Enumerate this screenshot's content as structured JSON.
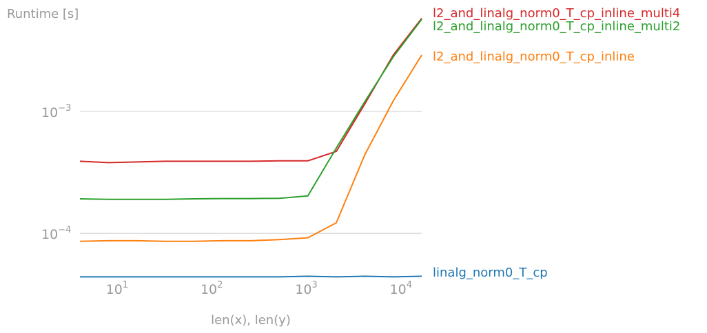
{
  "chart_data": {
    "type": "line",
    "ylabel": "Runtime [s]",
    "xlabel": "len(x), len(y)",
    "xscale": "log",
    "yscale": "log",
    "xlim": [
      4,
      16384
    ],
    "ylim": [
      3.5e-05,
      0.0072
    ],
    "grid": "horizontal major",
    "legend": "labels at right end of lines",
    "x_ticks": [
      {
        "value": 10,
        "base": "10",
        "exp": "1"
      },
      {
        "value": 100,
        "base": "10",
        "exp": "2"
      },
      {
        "value": 1000,
        "base": "10",
        "exp": "3"
      },
      {
        "value": 10000,
        "base": "10",
        "exp": "4"
      }
    ],
    "y_ticks": [
      {
        "value": 0.0001,
        "base": "10",
        "exp": "−4"
      },
      {
        "value": 0.001,
        "base": "10",
        "exp": "−3"
      }
    ],
    "x": [
      4,
      8,
      16,
      32,
      64,
      128,
      256,
      512,
      1024,
      2048,
      4096,
      8192,
      16384
    ],
    "series": [
      {
        "name": "l2_and_linalg_norm0_T_cp_inline_multi4",
        "color": "#d62728",
        "values": [
          0.00039,
          0.00038,
          0.000385,
          0.00039,
          0.00039,
          0.00039,
          0.00039,
          0.000393,
          0.000393,
          0.00047,
          0.00115,
          0.0029,
          0.0058
        ]
      },
      {
        "name": "l2_and_linalg_norm0_T_cp_inline_multi2",
        "color": "#2ca02c",
        "values": [
          0.000192,
          0.00019,
          0.00019,
          0.00019,
          0.000192,
          0.000193,
          0.000193,
          0.000194,
          0.000203,
          0.0005,
          0.0012,
          0.0028,
          0.0057
        ]
      },
      {
        "name": "l2_and_linalg_norm0_T_cp_inline",
        "color": "#ff7f0e",
        "values": [
          8.6e-05,
          8.7e-05,
          8.7e-05,
          8.6e-05,
          8.6e-05,
          8.7e-05,
          8.7e-05,
          8.9e-05,
          9.2e-05,
          0.000122,
          0.00044,
          0.00122,
          0.0029
        ]
      },
      {
        "name": "linalg_norm0_T_cp",
        "color": "#1f77b4",
        "values": [
          4.4e-05,
          4.4e-05,
          4.4e-05,
          4.4e-05,
          4.4e-05,
          4.4e-05,
          4.4e-05,
          4.4e-05,
          4.45e-05,
          4.4e-05,
          4.45e-05,
          4.4e-05,
          4.45e-05
        ]
      }
    ]
  }
}
